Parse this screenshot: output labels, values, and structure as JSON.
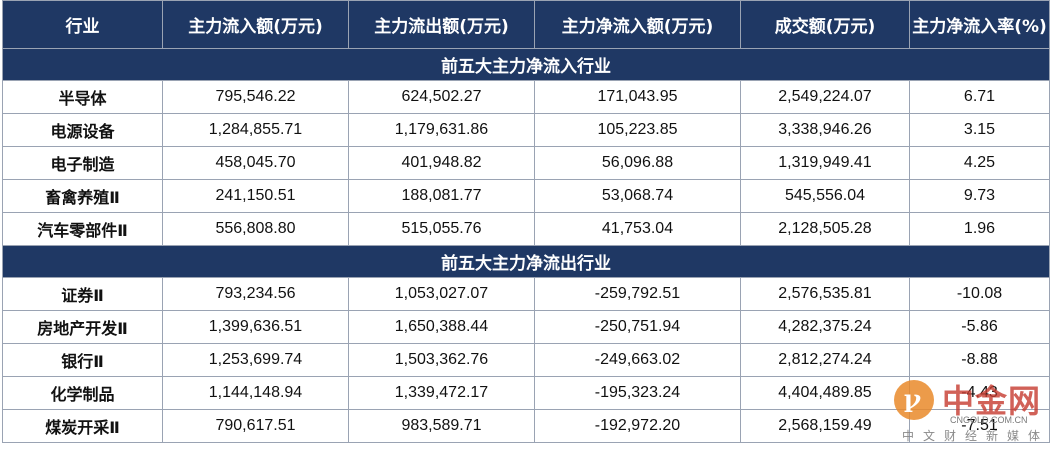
{
  "headers": [
    "行业",
    "主力流入额(万元)",
    "主力流出额(万元)",
    "主力净流入额(万元)",
    "成交额(万元)",
    "主力净流入率(%)"
  ],
  "sections": [
    {
      "title": "前五大主力净流入行业",
      "rows": [
        [
          "半导体",
          "795,546.22",
          "624,502.27",
          "171,043.95",
          "2,549,224.07",
          "6.71"
        ],
        [
          "电源设备",
          "1,284,855.71",
          "1,179,631.86",
          "105,223.85",
          "3,338,946.26",
          "3.15"
        ],
        [
          "电子制造",
          "458,045.70",
          "401,948.82",
          "56,096.88",
          "1,319,949.41",
          "4.25"
        ],
        [
          "畜禽养殖Ⅱ",
          "241,150.51",
          "188,081.77",
          "53,068.74",
          "545,556.04",
          "9.73"
        ],
        [
          "汽车零部件Ⅱ",
          "556,808.80",
          "515,055.76",
          "41,753.04",
          "2,128,505.28",
          "1.96"
        ]
      ]
    },
    {
      "title": "前五大主力净流出行业",
      "rows": [
        [
          "证券Ⅱ",
          "793,234.56",
          "1,053,027.07",
          "-259,792.51",
          "2,576,535.81",
          "-10.08"
        ],
        [
          "房地产开发Ⅱ",
          "1,399,636.51",
          "1,650,388.44",
          "-250,751.94",
          "4,282,375.24",
          "-5.86"
        ],
        [
          "银行Ⅱ",
          "1,253,699.74",
          "1,503,362.76",
          "-249,663.02",
          "2,812,274.24",
          "-8.88"
        ],
        [
          "化学制品",
          "1,144,148.94",
          "1,339,472.17",
          "-195,323.24",
          "4,404,489.85",
          "-4.43"
        ],
        [
          "煤炭开采Ⅱ",
          "790,617.51",
          "983,589.71",
          "-192,972.20",
          "2,568,159.49",
          "-7.51"
        ]
      ]
    }
  ],
  "watermark": {
    "brand": "中金网",
    "site": "CNGOLD.COM.CN",
    "slogan": "中文财经新媒体",
    "logo_color": "#e98a2a",
    "brand_color": "#c63a2f"
  },
  "colors": {
    "header_bg": "#1f3864",
    "header_text": "#ffffff",
    "border": "#9aa3b3"
  }
}
